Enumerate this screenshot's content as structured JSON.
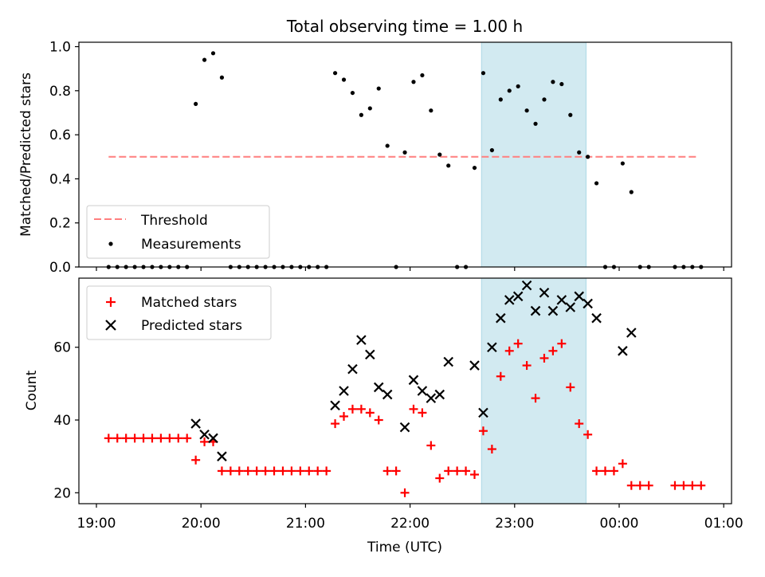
{
  "figure_title": "Total observing time = 1.00 h",
  "colors": {
    "threshold": "#ff7f7f",
    "band": "#add8e6",
    "measurement": "#000000",
    "matched": "#ff0000",
    "predicted": "#000000"
  },
  "chart_data": [
    {
      "type": "scatter",
      "panel": "top",
      "ylabel": "Matched/Predicted stars",
      "ylim": [
        0.0,
        1.02
      ],
      "yticks": [
        "0.0",
        "0.2",
        "0.4",
        "0.6",
        "0.8",
        "1.0"
      ],
      "xlim": [
        "19:00",
        "01:00"
      ],
      "legend_position": "lower-left",
      "legend": [
        "Threshold",
        "Measurements"
      ],
      "threshold": {
        "value": 0.5,
        "x_start": "19:07",
        "x_end": "00:45"
      },
      "highlight_band": {
        "x_start": "22:41",
        "x_end": "23:41"
      },
      "series": [
        {
          "name": "Measurements",
          "points": [
            [
              "19:07",
              0
            ],
            [
              "19:12",
              0
            ],
            [
              "19:17",
              0
            ],
            [
              "19:22",
              0
            ],
            [
              "19:27",
              0
            ],
            [
              "19:32",
              0
            ],
            [
              "19:37",
              0
            ],
            [
              "19:42",
              0
            ],
            [
              "19:47",
              0
            ],
            [
              "19:52",
              0
            ],
            [
              "19:57",
              0.74
            ],
            [
              "20:02",
              0.94
            ],
            [
              "20:07",
              0.97
            ],
            [
              "20:12",
              0.86
            ],
            [
              "20:17",
              0
            ],
            [
              "20:22",
              0
            ],
            [
              "20:27",
              0
            ],
            [
              "20:32",
              0
            ],
            [
              "20:37",
              0
            ],
            [
              "20:42",
              0
            ],
            [
              "20:47",
              0
            ],
            [
              "20:52",
              0
            ],
            [
              "20:57",
              0
            ],
            [
              "21:02",
              0
            ],
            [
              "21:07",
              0
            ],
            [
              "21:12",
              0
            ],
            [
              "21:17",
              0.88
            ],
            [
              "21:22",
              0.85
            ],
            [
              "21:27",
              0.79
            ],
            [
              "21:32",
              0.69
            ],
            [
              "21:37",
              0.72
            ],
            [
              "21:42",
              0.81
            ],
            [
              "21:47",
              0.55
            ],
            [
              "21:52",
              0
            ],
            [
              "21:57",
              0.52
            ],
            [
              "22:02",
              0.84
            ],
            [
              "22:07",
              0.87
            ],
            [
              "22:12",
              0.71
            ],
            [
              "22:17",
              0.51
            ],
            [
              "22:22",
              0.46
            ],
            [
              "22:27",
              0
            ],
            [
              "22:32",
              0
            ],
            [
              "22:37",
              0.45
            ],
            [
              "22:42",
              0.88
            ],
            [
              "22:47",
              0.53
            ],
            [
              "22:52",
              0.76
            ],
            [
              "22:57",
              0.8
            ],
            [
              "23:02",
              0.82
            ],
            [
              "23:07",
              0.71
            ],
            [
              "23:12",
              0.65
            ],
            [
              "23:17",
              0.76
            ],
            [
              "23:22",
              0.84
            ],
            [
              "23:27",
              0.83
            ],
            [
              "23:32",
              0.69
            ],
            [
              "23:37",
              0.52
            ],
            [
              "23:42",
              0.5
            ],
            [
              "23:47",
              0.38
            ],
            [
              "23:52",
              0
            ],
            [
              "23:57",
              0
            ],
            [
              "00:02",
              0.47
            ],
            [
              "00:07",
              0.34
            ],
            [
              "00:12",
              0
            ],
            [
              "00:17",
              0
            ],
            [
              "00:32",
              0
            ],
            [
              "00:37",
              0
            ],
            [
              "00:42",
              0
            ],
            [
              "00:47",
              0
            ]
          ]
        }
      ]
    },
    {
      "type": "scatter",
      "panel": "bottom",
      "ylabel": "Count",
      "xlabel": "Time (UTC)",
      "ylim": [
        17,
        79
      ],
      "yticks": [
        "20",
        "40",
        "60"
      ],
      "xlim": [
        "19:00",
        "01:00"
      ],
      "xticks": [
        "19:00",
        "20:00",
        "21:00",
        "22:00",
        "23:00",
        "00:00",
        "01:00"
      ],
      "legend_position": "upper-left",
      "legend": [
        "Matched stars",
        "Predicted stars"
      ],
      "highlight_band": {
        "x_start": "22:41",
        "x_end": "23:41"
      },
      "series": [
        {
          "name": "Matched stars",
          "points": [
            [
              "19:07",
              35
            ],
            [
              "19:12",
              35
            ],
            [
              "19:17",
              35
            ],
            [
              "19:22",
              35
            ],
            [
              "19:27",
              35
            ],
            [
              "19:32",
              35
            ],
            [
              "19:37",
              35
            ],
            [
              "19:42",
              35
            ],
            [
              "19:47",
              35
            ],
            [
              "19:52",
              35
            ],
            [
              "19:57",
              29
            ],
            [
              "20:02",
              34
            ],
            [
              "20:07",
              34
            ],
            [
              "20:12",
              26
            ],
            [
              "20:17",
              26
            ],
            [
              "20:22",
              26
            ],
            [
              "20:27",
              26
            ],
            [
              "20:32",
              26
            ],
            [
              "20:37",
              26
            ],
            [
              "20:42",
              26
            ],
            [
              "20:47",
              26
            ],
            [
              "20:52",
              26
            ],
            [
              "20:57",
              26
            ],
            [
              "21:02",
              26
            ],
            [
              "21:07",
              26
            ],
            [
              "21:12",
              26
            ],
            [
              "21:17",
              39
            ],
            [
              "21:22",
              41
            ],
            [
              "21:27",
              43
            ],
            [
              "21:32",
              43
            ],
            [
              "21:37",
              42
            ],
            [
              "21:42",
              40
            ],
            [
              "21:47",
              26
            ],
            [
              "21:52",
              26
            ],
            [
              "21:57",
              20
            ],
            [
              "22:02",
              43
            ],
            [
              "22:07",
              42
            ],
            [
              "22:12",
              33
            ],
            [
              "22:17",
              24
            ],
            [
              "22:22",
              26
            ],
            [
              "22:27",
              26
            ],
            [
              "22:32",
              26
            ],
            [
              "22:37",
              25
            ],
            [
              "22:42",
              37
            ],
            [
              "22:47",
              32
            ],
            [
              "22:52",
              52
            ],
            [
              "22:57",
              59
            ],
            [
              "23:02",
              61
            ],
            [
              "23:07",
              55
            ],
            [
              "23:12",
              46
            ],
            [
              "23:17",
              57
            ],
            [
              "23:22",
              59
            ],
            [
              "23:27",
              61
            ],
            [
              "23:32",
              49
            ],
            [
              "23:37",
              39
            ],
            [
              "23:42",
              36
            ],
            [
              "23:47",
              26
            ],
            [
              "23:52",
              26
            ],
            [
              "23:57",
              26
            ],
            [
              "00:02",
              28
            ],
            [
              "00:07",
              22
            ],
            [
              "00:12",
              22
            ],
            [
              "00:17",
              22
            ],
            [
              "00:32",
              22
            ],
            [
              "00:37",
              22
            ],
            [
              "00:42",
              22
            ],
            [
              "00:47",
              22
            ]
          ]
        },
        {
          "name": "Predicted stars",
          "points": [
            [
              "19:57",
              39
            ],
            [
              "20:02",
              36
            ],
            [
              "20:07",
              35
            ],
            [
              "20:12",
              30
            ],
            [
              "21:17",
              44
            ],
            [
              "21:22",
              48
            ],
            [
              "21:27",
              54
            ],
            [
              "21:32",
              62
            ],
            [
              "21:37",
              58
            ],
            [
              "21:42",
              49
            ],
            [
              "21:47",
              47
            ],
            [
              "21:57",
              38
            ],
            [
              "22:02",
              51
            ],
            [
              "22:07",
              48
            ],
            [
              "22:12",
              46
            ],
            [
              "22:17",
              47
            ],
            [
              "22:22",
              56
            ],
            [
              "22:37",
              55
            ],
            [
              "22:42",
              42
            ],
            [
              "22:47",
              60
            ],
            [
              "22:52",
              68
            ],
            [
              "22:57",
              73
            ],
            [
              "23:02",
              74
            ],
            [
              "23:07",
              77
            ],
            [
              "23:12",
              70
            ],
            [
              "23:17",
              75
            ],
            [
              "23:22",
              70
            ],
            [
              "23:27",
              73
            ],
            [
              "23:32",
              71
            ],
            [
              "23:37",
              74
            ],
            [
              "23:42",
              72
            ],
            [
              "23:47",
              68
            ],
            [
              "00:02",
              59
            ],
            [
              "00:07",
              64
            ]
          ]
        }
      ]
    }
  ]
}
